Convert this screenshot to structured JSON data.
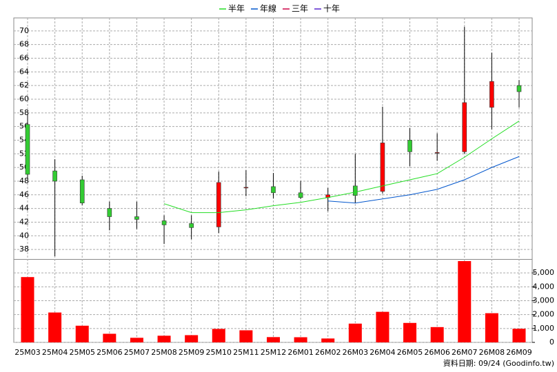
{
  "chart_data": [
    {
      "type": "candlestick",
      "categories": [
        "25M03",
        "25M04",
        "25M05",
        "25M06",
        "25M07",
        "25M08",
        "25M09",
        "25M10",
        "25M11",
        "25M12",
        "26M01",
        "26M02",
        "26M03",
        "26M04",
        "26M05",
        "26M06",
        "26M07",
        "26M08",
        "26M09"
      ],
      "open": [
        56.3,
        49.5,
        48.2,
        44.0,
        42.8,
        42.2,
        41.8,
        41.3,
        47.0,
        47.2,
        46.3,
        45.6,
        47.3,
        46.5,
        54.0,
        52.1,
        52.3,
        58.8,
        62.0
      ],
      "high": [
        57.8,
        51.2,
        48.8,
        45.0,
        45.0,
        43.0,
        43.0,
        49.4,
        49.6,
        49.2,
        48.0,
        47.0,
        52.0,
        58.9,
        55.8,
        55.0,
        70.6,
        66.8,
        62.8
      ],
      "low": [
        48.4,
        37.0,
        44.5,
        40.8,
        41.0,
        38.8,
        39.5,
        40.4,
        45.8,
        45.5,
        45.4,
        43.6,
        44.8,
        46.2,
        50.2,
        51.0,
        52.0,
        55.6,
        58.8
      ],
      "close": [
        49.0,
        48.0,
        44.8,
        42.8,
        42.4,
        41.6,
        41.2,
        47.8,
        47.1,
        46.3,
        45.6,
        46.0,
        45.9,
        53.6,
        52.3,
        52.2,
        59.5,
        62.6,
        61.1
      ],
      "up_color": "#ff0000",
      "down_color": "#33cc33",
      "series": [
        {
          "name": "半年",
          "color": "#22dd22",
          "values": [
            null,
            null,
            null,
            null,
            null,
            44.7,
            43.4,
            43.4,
            43.8,
            44.4,
            44.9,
            45.6,
            46.4,
            47.3,
            48.2,
            49.1,
            51.5,
            54.2,
            56.8
          ]
        },
        {
          "name": "年線",
          "color": "#0055cc",
          "values": [
            null,
            null,
            null,
            null,
            null,
            null,
            null,
            null,
            null,
            null,
            null,
            45.1,
            44.8,
            45.4,
            46.0,
            46.8,
            48.2,
            50.0,
            51.6
          ]
        },
        {
          "name": "三年",
          "color": "#cc0044",
          "values": [
            null,
            null,
            null,
            null,
            null,
            null,
            null,
            null,
            null,
            null,
            null,
            null,
            null,
            null,
            null,
            null,
            null,
            null,
            null
          ]
        },
        {
          "name": "十年",
          "color": "#5522cc",
          "values": [
            null,
            null,
            null,
            null,
            null,
            null,
            null,
            null,
            null,
            null,
            null,
            null,
            null,
            null,
            null,
            null,
            null,
            null,
            null
          ]
        }
      ],
      "ylim": [
        36.7,
        71.9
      ],
      "yticks": [
        38,
        40,
        42,
        44,
        46,
        48,
        50,
        52,
        54,
        56,
        58,
        60,
        62,
        64,
        66,
        68,
        70
      ],
      "grid": true
    },
    {
      "type": "bar",
      "color": "#ff0000",
      "values": [
        4700,
        2150,
        1200,
        620,
        330,
        480,
        520,
        970,
        870,
        380,
        370,
        280,
        1350,
        2200,
        1400,
        1100,
        5850,
        2100,
        980
      ],
      "ylim": [
        0,
        5900
      ],
      "yticks": [
        0,
        {
          "value": 1000,
          "label": "1,000"
        },
        {
          "value": 2000,
          "label": "2,000"
        },
        {
          "value": 3000,
          "label": "3,000"
        },
        {
          "value": 4000,
          "label": "4,000"
        },
        {
          "value": 5000,
          "label": "5,000"
        }
      ],
      "grid": true
    }
  ],
  "footer": "資料日期: 09/24  (Goodinfo.tw)"
}
